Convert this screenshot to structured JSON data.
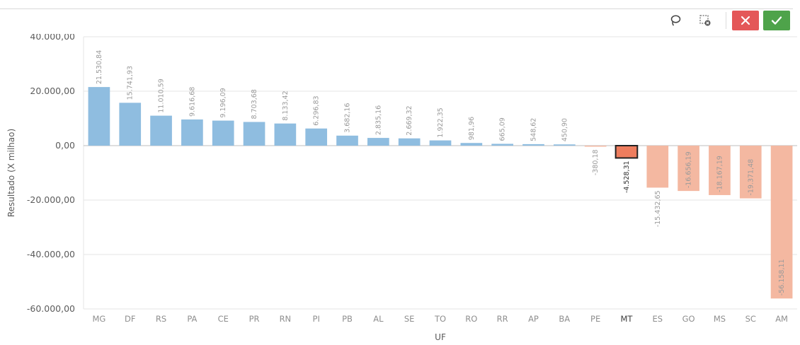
{
  "toolbar": {
    "lasso": {
      "icon": "lasso-icon"
    },
    "clear_selection": {
      "icon": "clear-selection-icon"
    },
    "cancel": {
      "icon": "close-icon",
      "color": "#e45758"
    },
    "confirm": {
      "icon": "check-icon",
      "color": "#4ea34a"
    }
  },
  "colors": {
    "positive": "#8fbde0",
    "negative": "#f4b8a1",
    "selected_fill": "#ee7d5e",
    "selected_border": "#222222",
    "grid": "#e6e6e6",
    "zero_line": "#bdbdbd"
  },
  "chart_data": {
    "type": "bar",
    "xlabel": "UF",
    "ylabel": "Resultado (X milhao)",
    "ylim": [
      -60000,
      40000
    ],
    "yticks": [
      -60000,
      -40000,
      -20000,
      0,
      20000,
      40000
    ],
    "ytick_labels": [
      "-60.000,00",
      "-40.000,00",
      "-20.000,00",
      "0,00",
      "20.000,00",
      "40.000,00"
    ],
    "grid": true,
    "selected": "MT",
    "categories": [
      "MG",
      "DF",
      "RS",
      "PA",
      "CE",
      "PR",
      "RN",
      "PI",
      "PB",
      "AL",
      "SE",
      "TO",
      "RO",
      "RR",
      "AP",
      "BA",
      "PE",
      "MT",
      "ES",
      "GO",
      "MS",
      "SC",
      "AM"
    ],
    "values": [
      21530.84,
      15741.93,
      11010.59,
      9616.68,
      9196.09,
      8703.68,
      8133.42,
      6296.83,
      3682.16,
      2835.16,
      2669.32,
      1922.35,
      981.96,
      665.09,
      548.62,
      450.9,
      -380.18,
      -4528.31,
      -15432.65,
      -16656.19,
      -18167.19,
      -19371.48,
      -56158.11
    ],
    "value_labels": [
      "21.530,84",
      "15.741,93",
      "11.010,59",
      "9.616,68",
      "9.196,09",
      "8.703,68",
      "8.133,42",
      "6.296,83",
      "3.682,16",
      "2.835,16",
      "2.669,32",
      "1.922,35",
      "981,96",
      "665,09",
      "548,62",
      "450,90",
      "-380,18",
      "-4.528,31",
      "-15.432,65",
      "-16.656,19",
      "-18.167,19",
      "-19.371,48",
      "-56.158,11"
    ]
  }
}
